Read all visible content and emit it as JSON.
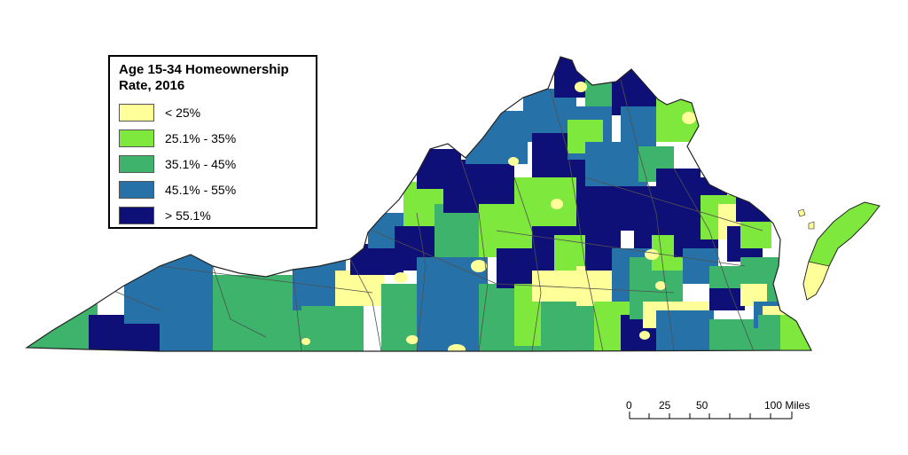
{
  "legend": {
    "title": "Age 15-34 Homeownership\nRate, 2016",
    "classes": [
      {
        "label": "< 25%",
        "color": "#FFFF99"
      },
      {
        "label": "25.1% - 35%",
        "color": "#7FE83C"
      },
      {
        "label": "35.1% - 45%",
        "color": "#3DB36B"
      },
      {
        "label": "45.1% - 55%",
        "color": "#2672A8"
      },
      {
        "label": "> 55.1%",
        "color": "#0F0F78"
      }
    ]
  },
  "scale_bar": {
    "ticks": [
      "0",
      "25",
      "50",
      "100 Miles"
    ]
  },
  "colors": {
    "border": "#505050",
    "outline": "#222222"
  }
}
